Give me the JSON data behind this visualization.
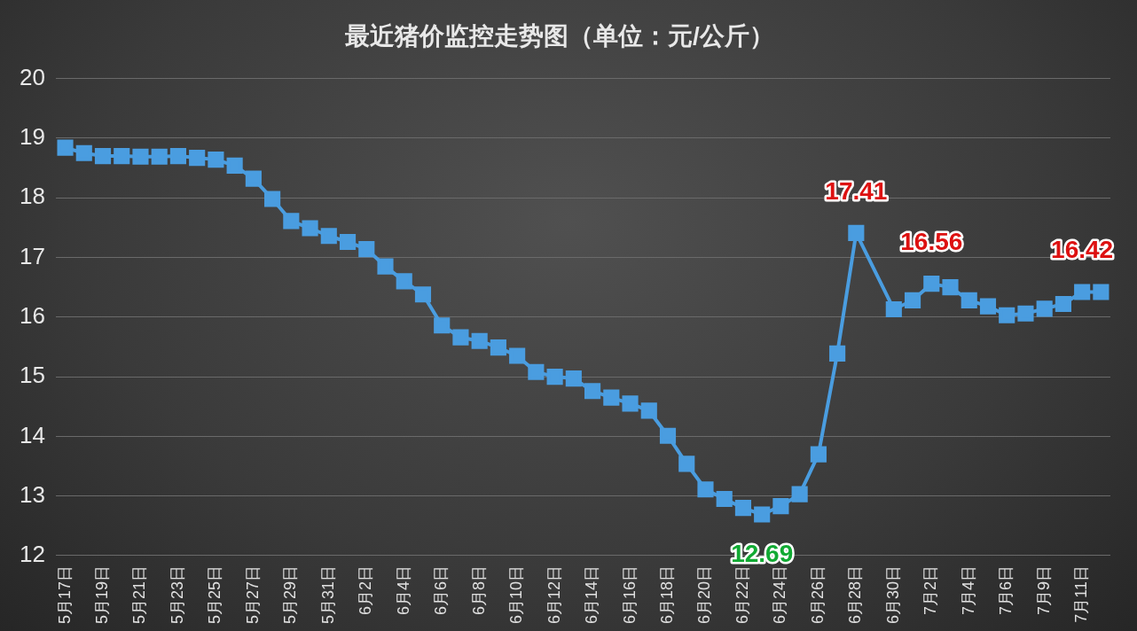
{
  "chart_data": {
    "type": "line",
    "title": "最近猪价监控走势图（单位：元/公斤）",
    "categories": [
      "5月17日",
      null,
      "5月19日",
      null,
      "5月21日",
      null,
      "5月23日",
      null,
      "5月25日",
      null,
      "5月27日",
      null,
      "5月29日",
      null,
      "5月31日",
      null,
      "6月2日",
      null,
      "6月4日",
      null,
      "6月6日",
      null,
      "6月8日",
      null,
      "6月10日",
      null,
      "6月12日",
      null,
      "6月14日",
      null,
      "6月16日",
      null,
      "6月18日",
      null,
      "6月20日",
      null,
      "6月22日",
      null,
      "6月24日",
      null,
      "6月26日",
      null,
      "6月28日",
      null,
      "6月30日",
      null,
      "7月2日",
      null,
      "7月4日",
      null,
      "7月6日",
      null,
      "7月9日",
      null,
      "7月11日",
      null
    ],
    "series": [
      {
        "color": "#4a9de0",
        "values": [
          18.84,
          18.75,
          18.7,
          18.7,
          18.69,
          18.69,
          18.7,
          18.67,
          18.64,
          18.54,
          18.32,
          17.98,
          17.61,
          17.49,
          17.36,
          17.26,
          17.14,
          16.85,
          16.6,
          16.38,
          15.86,
          15.66,
          15.6,
          15.49,
          15.35,
          15.08,
          15.0,
          14.97,
          14.76,
          14.65,
          14.55,
          14.43,
          14.01,
          13.54,
          13.11,
          12.95,
          12.8,
          12.69,
          12.83,
          13.03,
          13.7,
          15.39,
          17.41,
          null,
          16.13,
          16.28,
          16.56,
          16.5,
          16.28,
          16.18,
          16.03,
          16.06,
          16.14,
          16.22,
          16.42,
          16.42
        ]
      }
    ],
    "ylim": [
      12,
      20
    ],
    "yticks": [
      12,
      13,
      14,
      15,
      16,
      17,
      18,
      19,
      20
    ],
    "grid": "y",
    "marker": "square",
    "line_style": "solid",
    "legend": false,
    "annotations": [
      {
        "text": "17.41",
        "x": "6月28日",
        "y": 17.41
      },
      {
        "text": "16.56",
        "x": "7月2日",
        "y": 16.56
      },
      {
        "text": "16.42",
        "x": "7月11日",
        "y": 16.42
      },
      {
        "text": "12.69",
        "y": 12.69
      }
    ]
  }
}
